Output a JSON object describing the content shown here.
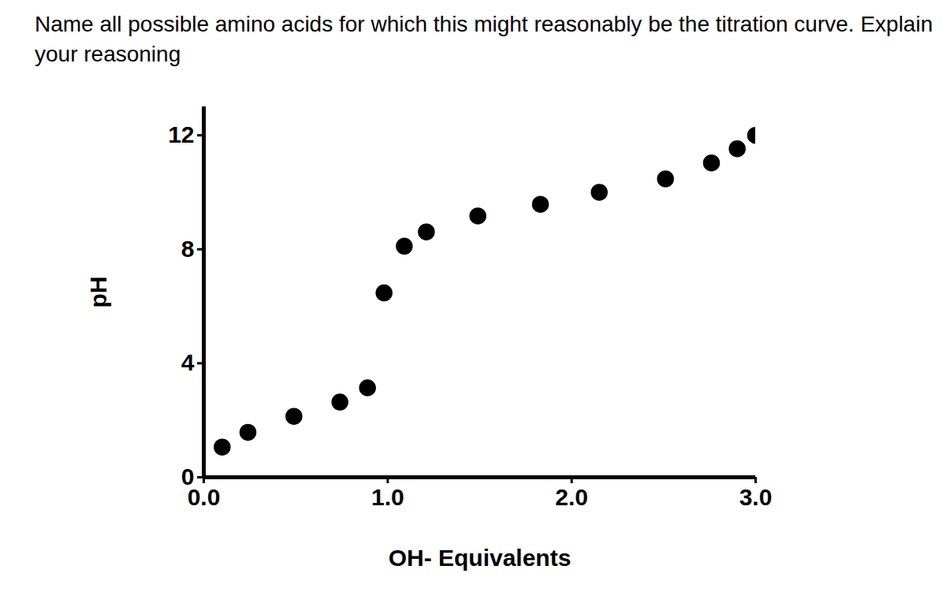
{
  "chart_data": {
    "type": "scatter",
    "title": "Name all possible amino acids for which this might reasonably be the titration curve. Explain your reasoning",
    "x_label": "OH- Equivalents",
    "y_label": "pH",
    "x": [
      0.1,
      0.24,
      0.49,
      0.74,
      0.89,
      0.98,
      1.09,
      1.21,
      1.49,
      1.83,
      2.15,
      2.51,
      2.76,
      2.9,
      3.0
    ],
    "values": [
      1.06,
      1.58,
      2.14,
      2.64,
      3.14,
      6.47,
      8.11,
      8.61,
      9.17,
      9.58,
      10.0,
      10.47,
      11.03,
      11.53,
      12.0
    ],
    "color": "#000000",
    "marker": "circle",
    "xlim": [
      0,
      3
    ],
    "xticks": [
      0,
      1,
      2,
      3
    ],
    "ylim": [
      0,
      13
    ],
    "yticks": [
      0,
      4,
      8,
      12
    ],
    "grid": false
  }
}
